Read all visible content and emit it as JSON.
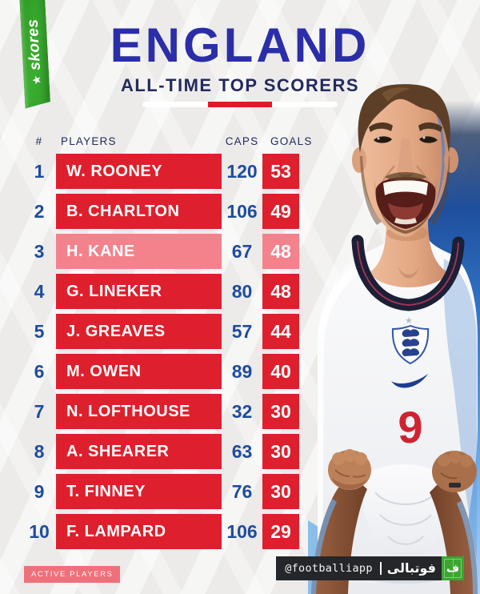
{
  "brand": {
    "logo_text": "skores"
  },
  "icons": {
    "star": "★"
  },
  "header": {
    "title": "ENGLAND",
    "subtitle": "ALL-TIME TOP SCORERS"
  },
  "table": {
    "columns": {
      "rank": "#",
      "player": "PLAYERS",
      "caps": "CAPS",
      "goals": "GOALS"
    },
    "rows": [
      {
        "rank": "1",
        "player": "W. ROONEY",
        "caps": "120",
        "goals": "53",
        "active": false
      },
      {
        "rank": "2",
        "player": "B. CHARLTON",
        "caps": "106",
        "goals": "49",
        "active": false
      },
      {
        "rank": "3",
        "player": "H. KANE",
        "caps": "67",
        "goals": "48",
        "active": true
      },
      {
        "rank": "4",
        "player": "G. LINEKER",
        "caps": "80",
        "goals": "48",
        "active": false
      },
      {
        "rank": "5",
        "player": "J. GREAVES",
        "caps": "57",
        "goals": "44",
        "active": false
      },
      {
        "rank": "6",
        "player": "M. OWEN",
        "caps": "89",
        "goals": "40",
        "active": false
      },
      {
        "rank": "7",
        "player": "N. LOFTHOUSE",
        "caps": "32",
        "goals": "30",
        "active": false
      },
      {
        "rank": "8",
        "player": "A. SHEARER",
        "caps": "63",
        "goals": "30",
        "active": false
      },
      {
        "rank": "9",
        "player": "T. FINNEY",
        "caps": "76",
        "goals": "30",
        "active": false
      },
      {
        "rank": "10",
        "player": "F. LAMPARD",
        "caps": "106",
        "goals": "29",
        "active": false
      }
    ]
  },
  "chart_data": {
    "type": "table",
    "title": "ENGLAND",
    "subtitle": "ALL-TIME TOP SCORERS",
    "columns": [
      "#",
      "PLAYERS",
      "CAPS",
      "GOALS"
    ],
    "rows": [
      [
        1,
        "W. ROONEY",
        120,
        53
      ],
      [
        2,
        "B. CHARLTON",
        106,
        49
      ],
      [
        3,
        "H. KANE",
        67,
        48
      ],
      [
        4,
        "G. LINEKER",
        80,
        48
      ],
      [
        5,
        "J. GREAVES",
        57,
        44
      ],
      [
        6,
        "M. OWEN",
        89,
        40
      ],
      [
        7,
        "N. LOFTHOUSE",
        32,
        30
      ],
      [
        8,
        "A. SHEARER",
        63,
        30
      ],
      [
        9,
        "T. FINNEY",
        76,
        30
      ],
      [
        10,
        "F. LAMPARD",
        106,
        29
      ]
    ],
    "highlighted_rows": [
      "H. KANE"
    ],
    "legend": "ACTIVE PLAYERS = pink rows"
  },
  "legend": {
    "active_players": "ACTIVE PLAYERS"
  },
  "watermark": {
    "handle": "@footballiapp",
    "brand_fa": "فوتبالی",
    "icon_letter": "ف"
  },
  "photo": {
    "shirt_number": "9"
  },
  "colors": {
    "red": "#DE1F2D",
    "active_pink": "#F3828D",
    "number_blue": "#1D4C9F",
    "title_blue": "#2B2EA8",
    "navy_text": "#222A5E",
    "divider_red": "#E01A24",
    "badge_pink": "#EE707B",
    "green": "#3AA62F",
    "watermark_bg": "#242629",
    "ribbon_green": "#3CAD31"
  }
}
